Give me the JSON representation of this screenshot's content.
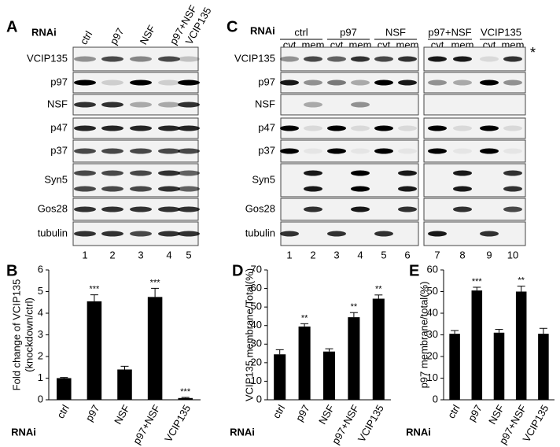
{
  "panel_a": {
    "letter": "A",
    "rnai": "RNAi",
    "columns": [
      "ctrl",
      "p97",
      "NSF",
      "p97+NSF",
      "VCIP135"
    ],
    "rows": [
      "VCIP135",
      "p97",
      "NSF",
      "p47",
      "p37",
      "Syn5",
      "Gos28",
      "tubulin"
    ],
    "lanes": [
      1,
      2,
      3,
      4,
      5
    ]
  },
  "panel_c": {
    "letter": "C",
    "rnai": "RNAi",
    "groups": [
      "ctrl",
      "p97",
      "NSF",
      "p97+NSF",
      "VCIP135"
    ],
    "fractions": [
      "cyt",
      "mem",
      "cyt",
      "mem",
      "cyt",
      "mem",
      "cyt",
      "mem",
      "cyt",
      "mem"
    ],
    "rows": [
      "VCIP135",
      "p97",
      "NSF",
      "p47",
      "p37",
      "Syn5",
      "Gos28",
      "tubulin"
    ],
    "lanes": [
      1,
      2,
      3,
      4,
      5,
      6,
      7,
      8,
      9,
      10
    ],
    "marker": "*"
  },
  "chart_data": [
    {
      "type": "bar",
      "panel": "B",
      "y_label": [
        "Fold change of VCIP135",
        "(knockdown/ctrl)"
      ],
      "x_label": "RNAi",
      "categories": [
        "ctrl",
        "p97",
        "NSF",
        "p97+NSF",
        "VCIP135"
      ],
      "values": [
        1.0,
        4.55,
        1.4,
        4.75,
        0.08
      ],
      "errors": [
        0.03,
        0.3,
        0.15,
        0.4,
        0.03
      ],
      "annotations": [
        null,
        "***",
        null,
        "***",
        "***"
      ],
      "ylim": [
        0,
        6
      ],
      "yticks": [
        0,
        1,
        2,
        3,
        4,
        5,
        6
      ],
      "color": "#000000"
    },
    {
      "type": "bar",
      "panel": "D",
      "y_label": [
        "VCIP135 membrane/Total(%)"
      ],
      "x_label": "RNAi",
      "categories": [
        "ctrl",
        "p97",
        "NSF",
        "p97+NSF",
        "VCIP135"
      ],
      "values": [
        24.5,
        39.5,
        26,
        44.5,
        54.5
      ],
      "errors": [
        2.5,
        1.5,
        1.5,
        2.5,
        2
      ],
      "annotations": [
        null,
        "**",
        null,
        "**",
        "**"
      ],
      "ylim": [
        0,
        70
      ],
      "yticks": [
        0,
        10,
        20,
        30,
        40,
        50,
        60,
        70
      ],
      "color": "#000000"
    },
    {
      "type": "bar",
      "panel": "E",
      "y_label": [
        "p97 membrane/total(%)"
      ],
      "x_label": "RNAi",
      "categories": [
        "ctrl",
        "p97",
        "NSF",
        "p97+NSF",
        "VCIP135"
      ],
      "values": [
        30.5,
        50.5,
        31,
        50,
        30.5
      ],
      "errors": [
        1.5,
        1.5,
        1.5,
        2.5,
        2.5
      ],
      "annotations": [
        null,
        "***",
        null,
        "**",
        null
      ],
      "ylim": [
        0,
        60
      ],
      "yticks": [
        0,
        10,
        20,
        30,
        40,
        50,
        60
      ],
      "color": "#000000"
    }
  ]
}
